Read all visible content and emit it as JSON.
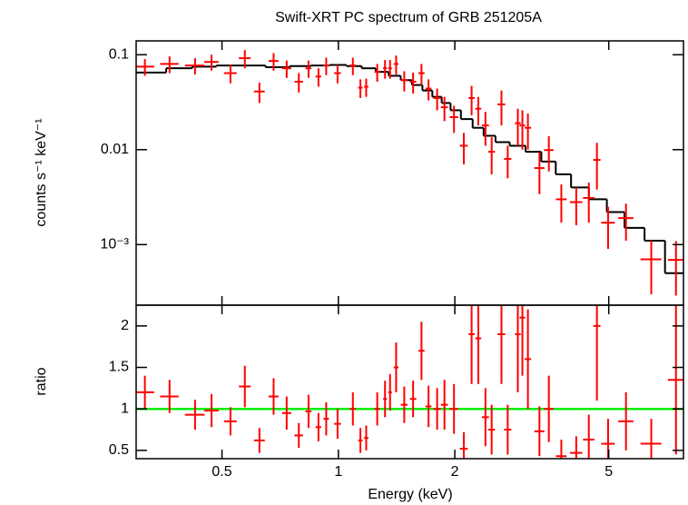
{
  "chart_data": [
    {
      "type": "scatter",
      "title": "Swift-XRT PC spectrum of GRB 251205A",
      "ylabel": "counts s⁻¹ keV⁻¹",
      "log_x": true,
      "log_y": true,
      "xlim": [
        0.3,
        7.8
      ],
      "ylim": [
        0.00023,
        0.14
      ],
      "yticks": [
        0.1,
        0.01,
        {
          "value": 0.001,
          "label": "10⁻³"
        }
      ],
      "data": {
        "color": "#ff0000",
        "x": [
          0.316,
          0.366,
          0.426,
          0.47,
          0.526,
          0.573,
          0.625,
          0.68,
          0.735,
          0.79,
          0.837,
          0.888,
          0.93,
          0.995,
          1.09,
          1.14,
          1.18,
          1.26,
          1.32,
          1.36,
          1.41,
          1.48,
          1.56,
          1.64,
          1.71,
          1.8,
          1.88,
          1.99,
          2.11,
          2.21,
          2.3,
          2.4,
          2.49,
          2.64,
          2.74,
          2.91,
          2.99,
          3.09,
          3.31,
          3.5,
          3.77,
          4.12,
          4.44,
          4.66,
          4.98,
          5.54,
          6.44,
          7.46
        ],
        "xerr": [
          0.018,
          0.02,
          0.025,
          0.02,
          0.02,
          0.02,
          0.02,
          0.02,
          0.02,
          0.02,
          0.015,
          0.015,
          0.015,
          0.02,
          0.02,
          0.015,
          0.015,
          0.02,
          0.015,
          0.015,
          0.02,
          0.03,
          0.03,
          0.03,
          0.03,
          0.04,
          0.04,
          0.05,
          0.05,
          0.04,
          0.04,
          0.05,
          0.05,
          0.06,
          0.06,
          0.05,
          0.05,
          0.06,
          0.1,
          0.1,
          0.12,
          0.15,
          0.15,
          0.1,
          0.2,
          0.25,
          0.4,
          0.35
        ],
        "values": [
          0.075,
          0.08,
          0.077,
          0.084,
          0.064,
          0.092,
          0.041,
          0.086,
          0.072,
          0.052,
          0.072,
          0.059,
          0.077,
          0.064,
          0.077,
          0.045,
          0.046,
          0.066,
          0.072,
          0.072,
          0.08,
          0.054,
          0.052,
          0.064,
          0.044,
          0.035,
          0.028,
          0.022,
          0.011,
          0.035,
          0.027,
          0.018,
          0.0095,
          0.03,
          0.008,
          0.019,
          0.018,
          0.017,
          0.0064,
          0.0099,
          0.003,
          0.0028,
          0.0031,
          0.0078,
          0.0017,
          0.0019,
          0.0007,
          0.00069
        ],
        "yerr": [
          0.015,
          0.016,
          0.015,
          0.016,
          0.014,
          0.02,
          0.01,
          0.018,
          0.015,
          0.012,
          0.015,
          0.013,
          0.016,
          0.014,
          0.016,
          0.01,
          0.01,
          0.014,
          0.016,
          0.016,
          0.018,
          0.013,
          0.013,
          0.016,
          0.011,
          0.009,
          0.008,
          0.007,
          0.004,
          0.012,
          0.009,
          0.007,
          0.004,
          0.012,
          0.003,
          0.008,
          0.008,
          0.007,
          0.003,
          0.004,
          0.0013,
          0.0012,
          0.0014,
          0.004,
          0.0008,
          0.0008,
          0.0004,
          0.0004
        ]
      },
      "model": {
        "color": "#000000",
        "x": [
          0.33,
          0.39,
          0.45,
          0.52,
          0.6,
          0.7,
          0.8,
          0.9,
          1.0,
          1.1,
          1.2,
          1.3,
          1.4,
          1.5,
          1.6,
          1.7,
          1.8,
          1.9,
          2.0,
          2.15,
          2.3,
          2.45,
          2.65,
          2.9,
          3.2,
          3.5,
          3.8,
          4.2,
          4.7,
          5.2,
          5.8,
          6.6,
          7.4
        ],
        "values": [
          0.065,
          0.072,
          0.075,
          0.077,
          0.077,
          0.074,
          0.076,
          0.077,
          0.078,
          0.076,
          0.072,
          0.066,
          0.06,
          0.054,
          0.048,
          0.042,
          0.036,
          0.031,
          0.026,
          0.021,
          0.017,
          0.014,
          0.012,
          0.011,
          0.0095,
          0.0075,
          0.0055,
          0.004,
          0.003,
          0.0022,
          0.0015,
          0.0011,
          0.0005
        ]
      }
    },
    {
      "type": "scatter",
      "ylabel": "ratio",
      "xlabel": "Energy (keV)",
      "log_x": true,
      "log_y": false,
      "xlim": [
        0.3,
        7.8
      ],
      "ylim": [
        0.4,
        2.25
      ],
      "xticks": [
        0.5,
        1,
        2,
        5
      ],
      "yticks": [
        0.5,
        1,
        1.5,
        2
      ],
      "reference_line": {
        "value": 1,
        "color": "#00ee00"
      },
      "data": {
        "color": "#ff0000",
        "x": [
          0.316,
          0.366,
          0.426,
          0.47,
          0.526,
          0.573,
          0.625,
          0.68,
          0.735,
          0.79,
          0.837,
          0.888,
          0.93,
          0.995,
          1.09,
          1.14,
          1.18,
          1.26,
          1.32,
          1.36,
          1.41,
          1.48,
          1.56,
          1.64,
          1.71,
          1.8,
          1.88,
          1.99,
          2.11,
          2.21,
          2.3,
          2.4,
          2.49,
          2.64,
          2.74,
          2.91,
          2.99,
          3.09,
          3.31,
          3.5,
          3.77,
          4.12,
          4.44,
          4.66,
          4.98,
          5.54,
          6.44,
          7.46
        ],
        "xerr": [
          0.018,
          0.02,
          0.025,
          0.02,
          0.02,
          0.02,
          0.02,
          0.02,
          0.02,
          0.02,
          0.015,
          0.015,
          0.015,
          0.02,
          0.02,
          0.015,
          0.015,
          0.02,
          0.015,
          0.015,
          0.02,
          0.03,
          0.03,
          0.03,
          0.03,
          0.04,
          0.04,
          0.05,
          0.05,
          0.04,
          0.04,
          0.05,
          0.05,
          0.06,
          0.06,
          0.05,
          0.05,
          0.06,
          0.1,
          0.1,
          0.12,
          0.15,
          0.15,
          0.1,
          0.2,
          0.25,
          0.4,
          0.35
        ],
        "values": [
          1.2,
          1.15,
          0.93,
          0.98,
          0.85,
          1.27,
          0.62,
          1.15,
          0.95,
          0.68,
          0.97,
          0.78,
          0.88,
          0.82,
          1.0,
          0.62,
          0.65,
          1.0,
          1.12,
          1.2,
          1.5,
          1.05,
          1.12,
          1.7,
          1.03,
          1.0,
          1.05,
          1.0,
          0.52,
          1.9,
          1.85,
          0.9,
          0.75,
          1.9,
          0.75,
          1.9,
          2.1,
          1.6,
          0.73,
          1.0,
          0.43,
          0.47,
          0.63,
          2.0,
          0.58,
          0.85,
          0.58,
          1.35
        ],
        "yerr": [
          0.2,
          0.2,
          0.18,
          0.2,
          0.17,
          0.25,
          0.15,
          0.22,
          0.2,
          0.15,
          0.2,
          0.17,
          0.2,
          0.18,
          0.2,
          0.15,
          0.15,
          0.2,
          0.22,
          0.22,
          0.3,
          0.22,
          0.22,
          0.35,
          0.25,
          0.25,
          0.3,
          0.3,
          0.2,
          0.6,
          0.55,
          0.35,
          0.3,
          0.6,
          0.3,
          0.7,
          0.7,
          0.6,
          0.3,
          0.4,
          0.2,
          0.2,
          0.3,
          0.9,
          0.3,
          0.35,
          0.3,
          0.9
        ]
      }
    }
  ]
}
